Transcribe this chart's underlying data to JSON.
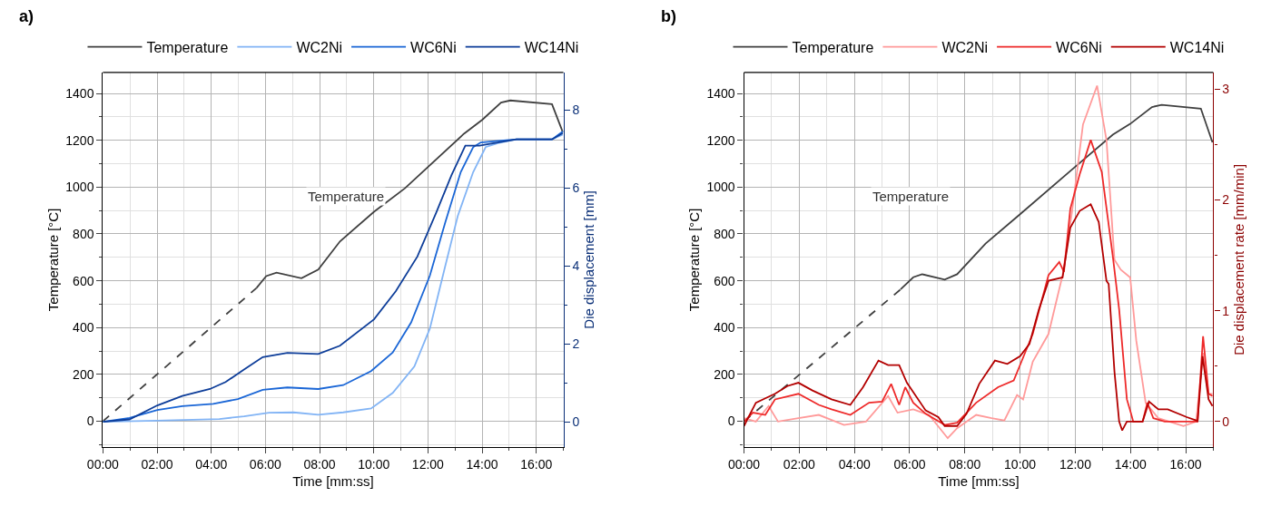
{
  "chart_data": [
    {
      "type": "line",
      "title": "a)",
      "xlabel": "Time [mm:ss]",
      "ylabel": "Temperature [°C]",
      "y2label": "Die displacement [mm]",
      "xlim": [
        0,
        17
      ],
      "xticks": [
        {
          "value": 0,
          "label": "00:00"
        },
        {
          "value": 2,
          "label": "02:00"
        },
        {
          "value": 4,
          "label": "04:00"
        },
        {
          "value": 6,
          "label": "06:00"
        },
        {
          "value": 8,
          "label": "08:00"
        },
        {
          "value": 10,
          "label": "10:00"
        },
        {
          "value": 12,
          "label": "12:00"
        },
        {
          "value": 14,
          "label": "14:00"
        },
        {
          "value": 16,
          "label": "16:00"
        }
      ],
      "ylim": [
        -110,
        1490
      ],
      "yticks": [
        0,
        200,
        400,
        600,
        800,
        1000,
        1200,
        1400
      ],
      "y2lim": [
        -0.65,
        8.97
      ],
      "y2ticks": [
        0,
        2,
        4,
        6,
        8
      ],
      "grid": true,
      "legend": "top",
      "annotations": [
        "Temperature"
      ],
      "series": [
        {
          "color": "#404040",
          "line_style": "dashed",
          "x": [
            0,
            5.67
          ],
          "values": [
            0,
            569
          ]
        },
        {
          "name": "Temperature",
          "color": "#404040",
          "x": [
            5.67,
            6.03,
            6.41,
            7.33,
            7.95,
            8.75,
            10.01,
            11.15,
            13.33,
            14.01,
            14.7,
            15.04,
            16.58,
            16.98
          ],
          "values": [
            569,
            620,
            635,
            611,
            648,
            768,
            895,
            995,
            1228,
            1288,
            1361,
            1370,
            1354,
            1234
          ]
        },
        {
          "name": "WC2Ni",
          "color": "#82b4f5",
          "axis": "y2",
          "x": [
            0,
            2.01,
            4.3,
            5.21,
            6.13,
            7.04,
            7.95,
            8.87,
            9.9,
            10.7,
            11.5,
            12.07,
            12.64,
            13.1,
            13.67,
            14.13,
            14.58,
            15.27,
            16.58,
            16.98
          ],
          "values": [
            0,
            0.03,
            0.07,
            0.14,
            0.23,
            0.24,
            0.18,
            0.24,
            0.34,
            0.74,
            1.42,
            2.39,
            4.0,
            5.28,
            6.41,
            7.05,
            7.15,
            7.25,
            7.25,
            7.37
          ]
        },
        {
          "name": "WC6Ni",
          "color": "#1a66d6",
          "axis": "y2",
          "x": [
            0,
            0.98,
            2.01,
            2.93,
            4.07,
            4.98,
            5.9,
            6.81,
            7.95,
            8.87,
            9.9,
            10.7,
            11.38,
            12.07,
            12.64,
            13.21,
            13.67,
            13.95,
            15.27,
            16.58,
            16.98
          ],
          "values": [
            0,
            0.1,
            0.3,
            0.4,
            0.46,
            0.58,
            0.82,
            0.88,
            0.84,
            0.94,
            1.3,
            1.78,
            2.55,
            3.75,
            5.12,
            6.41,
            7.05,
            7.17,
            7.25,
            7.25,
            7.45
          ]
        },
        {
          "name": "WC14Ni",
          "color": "#0d3d99",
          "axis": "y2",
          "x": [
            0,
            0.98,
            2.01,
            2.93,
            3.95,
            4.53,
            5.21,
            5.9,
            6.81,
            7.95,
            8.75,
            10.01,
            10.81,
            11.61,
            12.3,
            12.87,
            13.38,
            13.9,
            14.58,
            15.27,
            16.58,
            16.98
          ],
          "values": [
            0,
            0.06,
            0.42,
            0.66,
            0.84,
            1.02,
            1.34,
            1.66,
            1.77,
            1.74,
            1.95,
            2.63,
            3.35,
            4.24,
            5.36,
            6.33,
            7.09,
            7.09,
            7.17,
            7.25,
            7.25,
            7.41
          ]
        }
      ]
    },
    {
      "type": "line",
      "title": "b)",
      "xlabel": "Time [mm:ss]",
      "ylabel": "Temperature [°C]",
      "y2label": "Die displacement rate [mm/min]",
      "xlim": [
        0,
        17
      ],
      "xticks": [
        {
          "value": 0,
          "label": "00:00"
        },
        {
          "value": 2,
          "label": "02:00"
        },
        {
          "value": 4,
          "label": "04:00"
        },
        {
          "value": 6,
          "label": "06:00"
        },
        {
          "value": 8,
          "label": "08:00"
        },
        {
          "value": 10,
          "label": "10:00"
        },
        {
          "value": 12,
          "label": "12:00"
        },
        {
          "value": 14,
          "label": "14:00"
        },
        {
          "value": 16,
          "label": "16:00"
        }
      ],
      "ylim": [
        -110,
        1490
      ],
      "yticks": [
        0,
        200,
        400,
        600,
        800,
        1000,
        1200,
        1400
      ],
      "y2lim": [
        -0.23,
        3.15
      ],
      "y2ticks": [
        0,
        1,
        2,
        3
      ],
      "grid": true,
      "legend": "top",
      "annotations": [
        "Temperature"
      ],
      "series": [
        {
          "color": "#404040",
          "line_style": "dashed",
          "x": [
            0,
            5.67
          ],
          "values": [
            0,
            563
          ]
        },
        {
          "name": "Temperature",
          "color": "#404040",
          "x": [
            5.67,
            6.13,
            6.45,
            7.27,
            7.72,
            8.75,
            10.0,
            11.99,
            13.36,
            13.99,
            14.78,
            15.13,
            16.55,
            16.97
          ],
          "values": [
            563,
            615,
            628,
            605,
            628,
            759,
            884,
            1086,
            1224,
            1270,
            1342,
            1351,
            1335,
            1191
          ]
        },
        {
          "name": "WC2Ni",
          "color": "#ff9a9a",
          "axis": "y2",
          "x": [
            0,
            0.43,
            0.89,
            1.23,
            1.97,
            2.71,
            3.62,
            4.42,
            5.22,
            5.56,
            6.13,
            6.7,
            7.38,
            7.72,
            8.41,
            8.97,
            9.43,
            9.89,
            10.11,
            10.46,
            11.03,
            11.54,
            11.88,
            12.28,
            12.79,
            13.13,
            13.42,
            13.65,
            13.99,
            14.21,
            14.55,
            15.01,
            15.92,
            16.38,
            16.63,
            16.83,
            16.97
          ],
          "values": [
            0.03,
            0,
            0.14,
            0,
            0.03,
            0.06,
            -0.03,
            0,
            0.23,
            0.08,
            0.11,
            0.06,
            -0.15,
            -0.06,
            0.06,
            0.03,
            0.01,
            0.24,
            0.2,
            0.54,
            0.79,
            1.32,
            1.89,
            2.68,
            3.03,
            2.54,
            1.46,
            1.37,
            1.3,
            0.73,
            0.17,
            0.03,
            -0.04,
            0,
            0.62,
            0.25,
            0.25
          ]
        },
        {
          "name": "WC6Ni",
          "color": "#ee2a2a",
          "axis": "y2",
          "x": [
            0,
            0.32,
            0.77,
            1.12,
            1.97,
            2.71,
            3.17,
            3.85,
            4.53,
            5.0,
            5.33,
            5.62,
            5.84,
            6.13,
            6.58,
            7.27,
            7.72,
            8.41,
            9.2,
            9.77,
            10.0,
            10.46,
            11.03,
            11.42,
            11.59,
            11.82,
            12.16,
            12.56,
            12.96,
            13.36,
            13.59,
            13.87,
            13.99,
            14.1,
            14.44,
            14.61,
            14.83,
            15.24,
            16.43,
            16.63,
            16.83,
            16.97
          ],
          "values": [
            0,
            0.08,
            0.06,
            0.2,
            0.25,
            0.15,
            0.11,
            0.06,
            0.17,
            0.18,
            0.34,
            0.15,
            0.31,
            0.17,
            0.07,
            -0.03,
            -0.01,
            0.17,
            0.31,
            0.37,
            0.51,
            0.79,
            1.32,
            1.44,
            1.35,
            1.92,
            2.23,
            2.54,
            2.25,
            1.49,
            1.01,
            0.2,
            0.1,
            0,
            0,
            0.17,
            0.03,
            0,
            0,
            0.77,
            0.25,
            0.23
          ]
        },
        {
          "name": "WC14Ni",
          "color": "#b30000",
          "axis": "y2",
          "x": [
            0,
            0.2,
            0.43,
            0.77,
            1.12,
            1.57,
            1.97,
            2.48,
            3.17,
            3.85,
            4.31,
            4.87,
            5.22,
            5.62,
            5.9,
            6.58,
            7.04,
            7.27,
            7.72,
            8.06,
            8.52,
            9.09,
            9.54,
            10.0,
            10.34,
            10.68,
            11.03,
            11.54,
            11.82,
            12.16,
            12.56,
            12.85,
            13.13,
            13.21,
            13.42,
            13.59,
            13.7,
            13.87,
            14.44,
            14.67,
            15.01,
            15.35,
            16.04,
            16.38,
            16.43,
            16.61,
            16.83,
            16.97
          ],
          "values": [
            -0.04,
            0.06,
            0.17,
            0.21,
            0.25,
            0.32,
            0.35,
            0.28,
            0.2,
            0.15,
            0.31,
            0.55,
            0.51,
            0.51,
            0.35,
            0.1,
            0.04,
            -0.04,
            -0.04,
            0.07,
            0.34,
            0.55,
            0.52,
            0.59,
            0.7,
            1.01,
            1.27,
            1.3,
            1.75,
            1.9,
            1.96,
            1.8,
            1.27,
            1.24,
            0.45,
            0,
            -0.08,
            0,
            0,
            0.18,
            0.11,
            0.11,
            0.04,
            0.01,
            0,
            0.59,
            0.2,
            0.14
          ]
        }
      ]
    }
  ]
}
